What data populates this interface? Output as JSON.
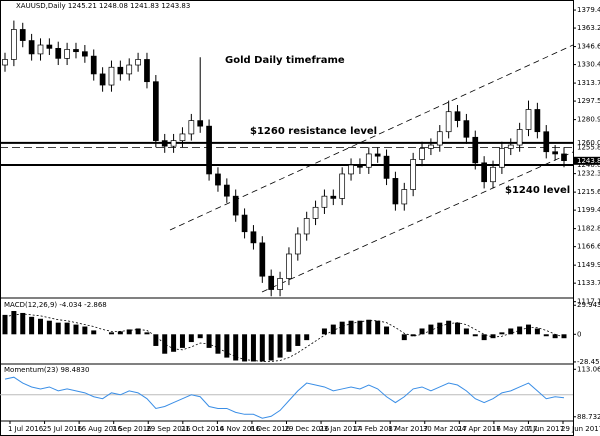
{
  "header": "XAUUSD,Daily 1245.21 1248.08 1241.83 1243.83",
  "x_labels": [
    "1 Jul 2016",
    "25 Jul 2016",
    "16 Aug 2016",
    "7 Sep 2016",
    "29 Sep 2016",
    "21 Oct 2016",
    "14 Nov 2016",
    "6 Dec 2016",
    "29 Dec 2016",
    "23 Jan 2017",
    "14 Feb 2017",
    "8 Mar 2017",
    "30 Mar 2017",
    "24 Apr 2017",
    "16 May 2017",
    "7 Jun 2017",
    "29 Jun 2017"
  ],
  "chart_data": [
    {
      "type": "candlestick",
      "annotations": [
        "Gold Daily timeframe",
        "$1260 resistance level",
        "$1240 level"
      ],
      "ylim": [
        1120.4,
        1388.5
      ],
      "yticks": [
        {
          "value": 1379.45,
          "label": "1379.45"
        },
        {
          "value": 1363.25,
          "label": "1363.25"
        },
        {
          "value": 1346.6,
          "label": "1346.60"
        },
        {
          "value": 1330.4,
          "label": "1330.40"
        },
        {
          "value": 1313.75,
          "label": "1313.75"
        },
        {
          "value": 1297.55,
          "label": "1297.55"
        },
        {
          "value": 1280.9,
          "label": "1280.90"
        },
        {
          "value": 1232.3,
          "label": "1232.30"
        },
        {
          "value": 1215.65,
          "label": "1215.65"
        },
        {
          "value": 1199.45,
          "label": "1199.45"
        },
        {
          "value": 1182.8,
          "label": "1182.80"
        },
        {
          "value": 1166.6,
          "label": "1166.60"
        },
        {
          "value": 1149.95,
          "label": "1149.95"
        },
        {
          "value": 1133.75,
          "label": "1133.75"
        },
        {
          "value": 1117.1,
          "label": "1117.10"
        }
      ],
      "levels": [
        {
          "value": 1260,
          "label": "1260.00",
          "style": "solid"
        },
        {
          "value": 1255.8,
          "label": "1255.80",
          "style": "dashed"
        },
        {
          "value": 1240,
          "label": "1240.00",
          "style": "solid"
        }
      ],
      "last_price": {
        "value": 1243.83,
        "label": "1243.83"
      },
      "open": [
        1330,
        1335,
        1362,
        1352,
        1340,
        1348,
        1345,
        1336,
        1344,
        1342,
        1338,
        1322,
        1312,
        1328,
        1322,
        1330,
        1335,
        1315,
        1262,
        1257,
        1262,
        1268,
        1280,
        1275,
        1232,
        1222,
        1212,
        1195,
        1180,
        1170,
        1140,
        1128,
        1138,
        1160,
        1178,
        1192,
        1202,
        1212,
        1210,
        1232,
        1240,
        1238,
        1250,
        1248,
        1228,
        1205,
        1218,
        1245,
        1255,
        1258,
        1270,
        1288,
        1280,
        1265,
        1242,
        1225,
        1238,
        1255,
        1258,
        1272,
        1290,
        1270,
        1252,
        1250
      ],
      "high": [
        1341,
        1370,
        1368,
        1358,
        1354,
        1354,
        1351,
        1350,
        1350,
        1348,
        1344,
        1328,
        1334,
        1334,
        1336,
        1341,
        1341,
        1321,
        1268,
        1268,
        1274,
        1286,
        1337,
        1281,
        1238,
        1228,
        1218,
        1201,
        1186,
        1176,
        1146,
        1144,
        1166,
        1184,
        1198,
        1208,
        1218,
        1218,
        1238,
        1246,
        1246,
        1256,
        1256,
        1254,
        1234,
        1224,
        1251,
        1261,
        1264,
        1276,
        1298,
        1294,
        1286,
        1271,
        1248,
        1244,
        1261,
        1264,
        1278,
        1298,
        1296,
        1276,
        1258,
        1256
      ],
      "low": [
        1324,
        1329,
        1346,
        1334,
        1334,
        1339,
        1330,
        1330,
        1336,
        1332,
        1316,
        1306,
        1306,
        1316,
        1316,
        1324,
        1309,
        1256,
        1251,
        1251,
        1256,
        1262,
        1269,
        1226,
        1216,
        1206,
        1189,
        1174,
        1164,
        1134,
        1122,
        1122,
        1132,
        1154,
        1172,
        1186,
        1196,
        1204,
        1204,
        1226,
        1232,
        1232,
        1242,
        1222,
        1199,
        1199,
        1212,
        1239,
        1249,
        1252,
        1264,
        1274,
        1259,
        1236,
        1219,
        1219,
        1232,
        1249,
        1252,
        1266,
        1264,
        1246,
        1244,
        1238
      ],
      "close": [
        1335,
        1362,
        1352,
        1340,
        1348,
        1345,
        1336,
        1344,
        1342,
        1338,
        1322,
        1312,
        1328,
        1322,
        1330,
        1335,
        1315,
        1262,
        1257,
        1262,
        1268,
        1280,
        1275,
        1232,
        1222,
        1212,
        1195,
        1180,
        1170,
        1140,
        1128,
        1138,
        1160,
        1178,
        1192,
        1202,
        1212,
        1210,
        1232,
        1240,
        1238,
        1250,
        1248,
        1228,
        1205,
        1218,
        1245,
        1255,
        1258,
        1270,
        1288,
        1280,
        1265,
        1242,
        1225,
        1238,
        1255,
        1258,
        1272,
        1290,
        1270,
        1252,
        1250,
        1244
      ]
    },
    {
      "type": "macd",
      "label": "MACD(12,26,9) -4.034 -2.868",
      "ylim": [
        -30.6,
        37.4
      ],
      "yticks": [
        29.943,
        0,
        -28.459
      ],
      "values": [
        20,
        24,
        22,
        18,
        16,
        14,
        12,
        12,
        10,
        8,
        4,
        0,
        2,
        3,
        5,
        6,
        2,
        -12,
        -20,
        -18,
        -14,
        -8,
        -4,
        -14,
        -20,
        -24,
        -27,
        -28,
        -28,
        -28,
        -27,
        -24,
        -18,
        -12,
        -6,
        0,
        6,
        10,
        13,
        14,
        14,
        15,
        14,
        8,
        0,
        -6,
        -2,
        6,
        10,
        12,
        14,
        12,
        6,
        -2,
        -6,
        -4,
        2,
        6,
        8,
        10,
        6,
        -2,
        -4,
        -4.034
      ],
      "signal": [
        18,
        20,
        21,
        20,
        19,
        17,
        15,
        14,
        12,
        10,
        8,
        5,
        3,
        3,
        4,
        5,
        4,
        -2,
        -10,
        -15,
        -16,
        -13,
        -9,
        -10,
        -14,
        -19,
        -23,
        -26,
        -27,
        -28,
        -28,
        -27,
        -24,
        -19,
        -13,
        -7,
        -1,
        4,
        8,
        11,
        13,
        14,
        14,
        12,
        7,
        1,
        -2,
        0,
        4,
        8,
        11,
        12,
        10,
        5,
        0,
        -3,
        -2,
        1,
        4,
        7,
        7,
        4,
        0,
        -2.868
      ]
    },
    {
      "type": "line",
      "label": "Momentum(23) 98.4830",
      "ylim": [
        86.57,
        115.77
      ],
      "yticks": [
        113.065,
        88.7325
      ],
      "reference": 100,
      "color": "#3a8ee6",
      "values": [
        108,
        109,
        106,
        104,
        103,
        104,
        102,
        103,
        102,
        101,
        99,
        98,
        101,
        100,
        102,
        101,
        98,
        93,
        94,
        96,
        98,
        100,
        99,
        94,
        93,
        93,
        91,
        90,
        90,
        88,
        89,
        92,
        97,
        102,
        106,
        105,
        104,
        102,
        103,
        104,
        103,
        105,
        103,
        99,
        96,
        99,
        103,
        104,
        102,
        104,
        106,
        105,
        102,
        98,
        96,
        98,
        101,
        102,
        104,
        106,
        102,
        98,
        99,
        98.483
      ]
    }
  ]
}
